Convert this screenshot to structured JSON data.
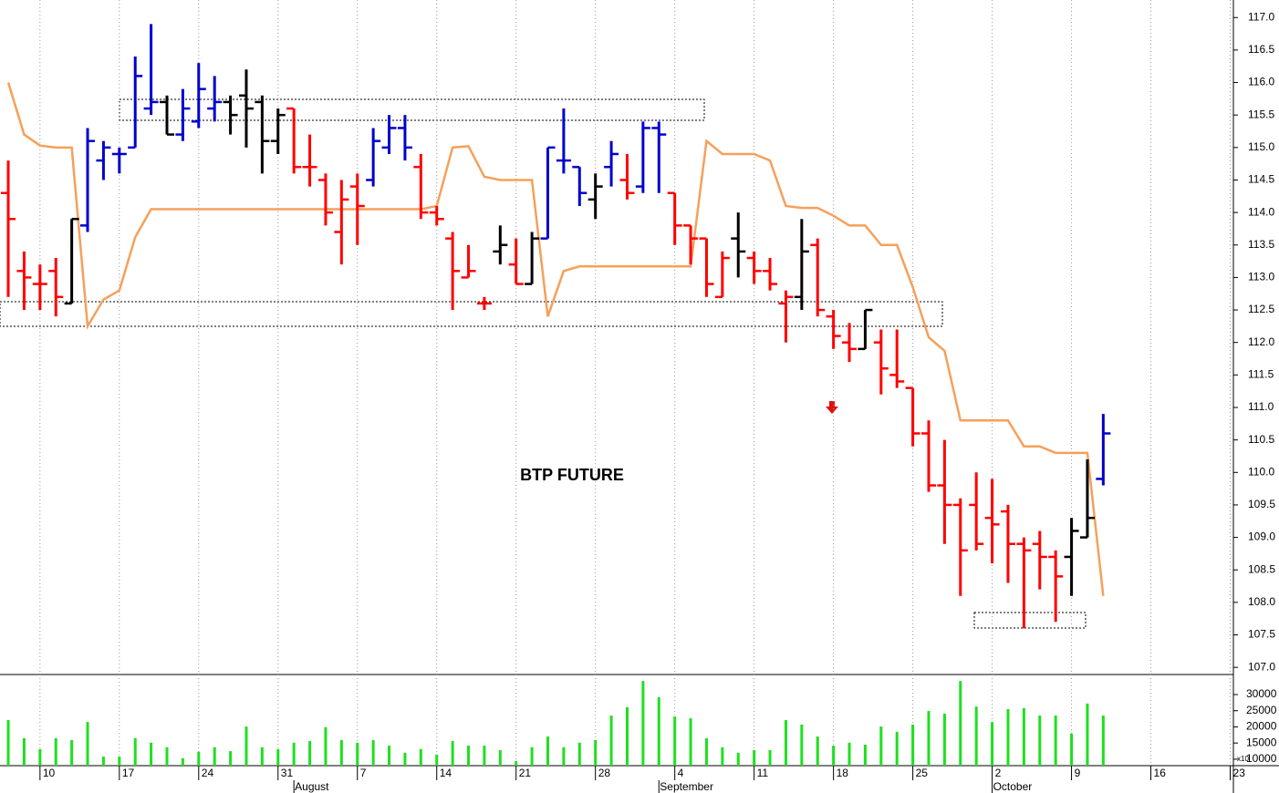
{
  "chart_data": [
    {
      "type": "ohlc",
      "annotation": "BTP FUTURE",
      "open": [
        114.3,
        113.1,
        112.9,
        113.1,
        112.6,
        113.8,
        114.8,
        114.9,
        115.0,
        115.6,
        115.7,
        115.2,
        115.4,
        115.6,
        115.7,
        115.8,
        115.7,
        115.1,
        115.6,
        114.7,
        114.5,
        113.7,
        114.4,
        114.5,
        115.0,
        115.3,
        114.7,
        114.0,
        113.6,
        113.0,
        112.6,
        113.4,
        113.2,
        112.9,
        113.6,
        114.8,
        114.7,
        114.2,
        114.7,
        114.5,
        114.4,
        115.3,
        114.3,
        113.8,
        113.6,
        112.7,
        113.6,
        113.3,
        113.1,
        112.6,
        112.7,
        113.5,
        112.4,
        112.0,
        111.9,
        112.0,
        111.5,
        111.3,
        110.6,
        109.8,
        109.5,
        109.5,
        109.3,
        109.4,
        108.9,
        108.9,
        108.7,
        108.7,
        109.0,
        109.9
      ],
      "high": [
        114.8,
        113.4,
        113.2,
        113.3,
        113.9,
        115.3,
        115.1,
        115.0,
        116.4,
        116.9,
        115.8,
        115.9,
        116.3,
        116.1,
        115.8,
        116.2,
        115.8,
        115.6,
        115.6,
        115.2,
        114.6,
        114.5,
        114.6,
        115.3,
        115.5,
        115.5,
        114.9,
        114.1,
        113.7,
        113.5,
        112.7,
        113.8,
        113.6,
        113.7,
        115.0,
        115.6,
        114.7,
        114.6,
        115.1,
        114.9,
        115.4,
        115.4,
        114.3,
        113.8,
        113.6,
        113.4,
        114.0,
        113.4,
        113.3,
        112.8,
        113.9,
        113.6,
        112.5,
        112.3,
        112.5,
        112.2,
        112.2,
        111.3,
        110.8,
        110.5,
        109.6,
        110.0,
        109.9,
        109.5,
        109.0,
        109.1,
        108.8,
        109.3,
        110.2,
        110.9
      ],
      "low": [
        112.7,
        112.5,
        112.5,
        112.4,
        112.6,
        113.7,
        114.5,
        114.6,
        115.0,
        115.5,
        115.2,
        115.1,
        115.3,
        115.4,
        115.2,
        115.0,
        114.6,
        114.9,
        114.6,
        114.4,
        113.8,
        113.2,
        113.5,
        114.4,
        114.9,
        114.8,
        113.9,
        113.8,
        112.5,
        113.0,
        112.5,
        113.2,
        112.9,
        112.9,
        113.6,
        114.6,
        114.1,
        113.9,
        114.4,
        114.2,
        114.3,
        114.3,
        113.5,
        113.2,
        112.7,
        112.7,
        113.0,
        112.9,
        112.8,
        112.0,
        112.5,
        112.4,
        111.9,
        111.7,
        111.9,
        111.2,
        111.3,
        110.4,
        109.7,
        108.9,
        108.1,
        108.8,
        108.6,
        108.3,
        107.6,
        108.2,
        107.7,
        108.1,
        109.0,
        109.8
      ],
      "close": [
        113.9,
        113.0,
        112.9,
        112.7,
        113.9,
        115.1,
        115.0,
        114.9,
        116.1,
        115.7,
        115.2,
        115.6,
        115.9,
        115.7,
        115.5,
        115.6,
        115.1,
        115.5,
        114.7,
        114.7,
        114.0,
        114.2,
        114.1,
        115.1,
        115.3,
        115.0,
        114.0,
        113.9,
        113.1,
        113.1,
        112.6,
        113.5,
        112.9,
        113.6,
        115.0,
        114.8,
        114.3,
        114.4,
        114.9,
        114.3,
        115.3,
        115.2,
        113.8,
        113.6,
        112.9,
        113.3,
        113.4,
        113.1,
        112.9,
        112.7,
        113.4,
        112.5,
        112.1,
        111.9,
        112.5,
        111.6,
        111.4,
        110.6,
        109.8,
        109.5,
        108.8,
        108.9,
        109.2,
        108.9,
        108.8,
        108.7,
        108.4,
        109.1,
        109.3,
        110.6
      ],
      "bar_colors": [
        "red",
        "red",
        "red",
        "red",
        "black",
        "mediumblue",
        "mediumblue",
        "mediumblue",
        "mediumblue",
        "mediumblue",
        "black",
        "mediumblue",
        "mediumblue",
        "mediumblue",
        "black",
        "black",
        "black",
        "black",
        "red",
        "red",
        "red",
        "red",
        "red",
        "mediumblue",
        "mediumblue",
        "mediumblue",
        "red",
        "red",
        "red",
        "red",
        "red",
        "black",
        "red",
        "black",
        "mediumblue",
        "mediumblue",
        "mediumblue",
        "black",
        "mediumblue",
        "red",
        "mediumblue",
        "mediumblue",
        "red",
        "red",
        "red",
        "red",
        "black",
        "red",
        "red",
        "red",
        "black",
        "red",
        "red",
        "red",
        "black",
        "red",
        "red",
        "red",
        "red",
        "red",
        "red",
        "red",
        "red",
        "red",
        "red",
        "red",
        "red",
        "black",
        "black",
        "mediumblue"
      ],
      "line": {
        "color": "#f5a05a",
        "values": [
          116.0,
          115.2,
          115.03,
          115.0,
          115.0,
          112.25,
          112.66,
          112.8,
          113.62,
          114.05,
          114.05,
          114.05,
          114.05,
          114.05,
          114.05,
          114.05,
          114.05,
          114.05,
          114.05,
          114.05,
          114.05,
          114.05,
          114.05,
          114.05,
          114.05,
          114.05,
          114.05,
          114.1,
          115.0,
          115.02,
          114.55,
          114.5,
          114.5,
          114.5,
          112.4,
          113.1,
          113.17,
          113.17,
          113.17,
          113.17,
          113.17,
          113.17,
          113.17,
          113.17,
          115.1,
          114.9,
          114.9,
          114.9,
          114.8,
          114.1,
          114.07,
          114.07,
          113.95,
          113.8,
          113.8,
          113.5,
          113.5,
          112.85,
          112.08,
          111.87,
          110.8,
          110.8,
          110.8,
          110.8,
          110.4,
          110.4,
          110.3,
          110.3,
          110.3,
          108.1
        ]
      },
      "xlim": [
        -0.52,
        77.2
      ],
      "xticks": [
        {
          "value": 2,
          "label": "10"
        },
        {
          "value": 7,
          "label": "17"
        },
        {
          "value": 12,
          "label": "24"
        },
        {
          "value": 17,
          "label": "31"
        },
        {
          "value": 22,
          "label": "7"
        },
        {
          "value": 27,
          "label": "14"
        },
        {
          "value": 32,
          "label": "21"
        },
        {
          "value": 37,
          "label": "28"
        },
        {
          "value": 42,
          "label": "4"
        },
        {
          "value": 47,
          "label": "11"
        },
        {
          "value": 52,
          "label": "18"
        },
        {
          "value": 57,
          "label": "25"
        },
        {
          "value": 62,
          "label": "2"
        },
        {
          "value": 67,
          "label": "9"
        },
        {
          "value": 72,
          "label": "16"
        },
        {
          "value": 77,
          "label": "23"
        }
      ],
      "month_ticks": [
        {
          "value": 18,
          "label": "August"
        },
        {
          "value": 41,
          "label": "September"
        },
        {
          "value": 62,
          "label": "October"
        }
      ],
      "ylim": [
        106.89,
        117.27
      ],
      "yticks": [
        {
          "value": 107,
          "label": "107.0"
        },
        {
          "value": 107.5,
          "label": "107.5"
        },
        {
          "value": 108,
          "label": "108.0"
        },
        {
          "value": 108.5,
          "label": "108.5"
        },
        {
          "value": 109,
          "label": "109.0"
        },
        {
          "value": 109.5,
          "label": "109.5"
        },
        {
          "value": 110,
          "label": "110.0"
        },
        {
          "value": 110.5,
          "label": "110.5"
        },
        {
          "value": 111,
          "label": "111.0"
        },
        {
          "value": 111.5,
          "label": "111.5"
        },
        {
          "value": 112,
          "label": "112.0"
        },
        {
          "value": 112.5,
          "label": "112.5"
        },
        {
          "value": 113,
          "label": "113.0"
        },
        {
          "value": 113.5,
          "label": "113.5"
        },
        {
          "value": 114,
          "label": "114.0"
        },
        {
          "value": 114.5,
          "label": "114.5"
        },
        {
          "value": 115,
          "label": "115.0"
        },
        {
          "value": 115.5,
          "label": "115.5"
        },
        {
          "value": 116,
          "label": "116.0"
        },
        {
          "value": 116.5,
          "label": "116.5"
        },
        {
          "value": 117,
          "label": "117.0"
        }
      ],
      "grid": true
    },
    {
      "type": "bar",
      "color": "#1ee01e",
      "unit_label": "x10",
      "values": [
        22100,
        16500,
        13100,
        16500,
        15900,
        21500,
        10800,
        10800,
        16500,
        15100,
        13700,
        10300,
        12300,
        13700,
        12500,
        20100,
        13700,
        13100,
        15100,
        15600,
        19900,
        15900,
        15100,
        15900,
        14200,
        12000,
        13100,
        11400,
        15600,
        14200,
        14200,
        12800,
        9400,
        13700,
        17000,
        13700,
        15100,
        15900,
        23500,
        26100,
        34200,
        29200,
        23200,
        22700,
        16500,
        13700,
        12000,
        12800,
        12800,
        22100,
        20700,
        17000,
        14200,
        15100,
        14500,
        20100,
        18500,
        20700,
        24900,
        24100,
        34200,
        26300,
        21500,
        25500,
        25800,
        23500,
        23500,
        17900,
        27200,
        23500
      ],
      "ylim": [
        8000,
        36200
      ],
      "yticks": [
        10000,
        15000,
        20000,
        25000,
        30000
      ]
    }
  ]
}
